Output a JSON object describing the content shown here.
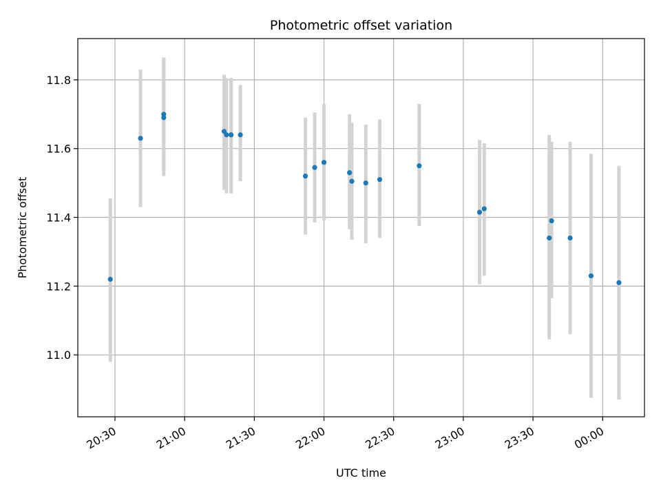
{
  "chart_data": {
    "type": "scatter",
    "title": "Photometric offset variation",
    "xlabel": "UTC time",
    "ylabel": "Photometric offset",
    "grid": true,
    "colors": {
      "point": "#1f77b4",
      "errorbar": "#d3d3d3",
      "grid": "#b0b0b0"
    },
    "xlim": [
      "20:14",
      "00:18"
    ],
    "ylim": [
      10.82,
      11.92
    ],
    "x_ticks": [
      "20:30",
      "21:00",
      "21:30",
      "22:00",
      "22:30",
      "23:00",
      "23:30",
      "00:00"
    ],
    "y_ticks": [
      "11.0",
      "11.2",
      "11.4",
      "11.6",
      "11.8"
    ],
    "series": [
      {
        "x": [
          "20:28",
          "20:41",
          "20:51",
          "20:51",
          "21:17",
          "21:18",
          "21:20",
          "21:20",
          "21:24",
          "21:52",
          "21:56",
          "22:00",
          "22:11",
          "22:12",
          "22:18",
          "22:24",
          "22:41",
          "23:07",
          "23:09",
          "23:37",
          "23:38",
          "23:46",
          "23:55",
          "00:07"
        ],
        "y": [
          11.22,
          11.63,
          11.7,
          11.69,
          11.65,
          11.64,
          11.64,
          11.64,
          11.64,
          11.52,
          11.545,
          11.56,
          11.53,
          11.505,
          11.5,
          11.51,
          11.55,
          11.415,
          11.425,
          11.34,
          11.39,
          11.34,
          11.23,
          11.21
        ],
        "y_low": [
          10.98,
          11.43,
          11.54,
          11.52,
          11.48,
          11.47,
          11.47,
          11.47,
          11.505,
          11.35,
          11.385,
          11.39,
          11.365,
          11.335,
          11.325,
          11.34,
          11.375,
          11.205,
          11.23,
          11.045,
          11.165,
          11.06,
          10.875,
          10.87
        ],
        "y_high": [
          11.455,
          11.83,
          11.865,
          11.865,
          11.815,
          11.805,
          11.805,
          11.805,
          11.785,
          11.69,
          11.705,
          11.73,
          11.7,
          11.675,
          11.67,
          11.685,
          11.73,
          11.625,
          11.615,
          11.64,
          11.62,
          11.62,
          11.585,
          11.55
        ]
      }
    ]
  }
}
